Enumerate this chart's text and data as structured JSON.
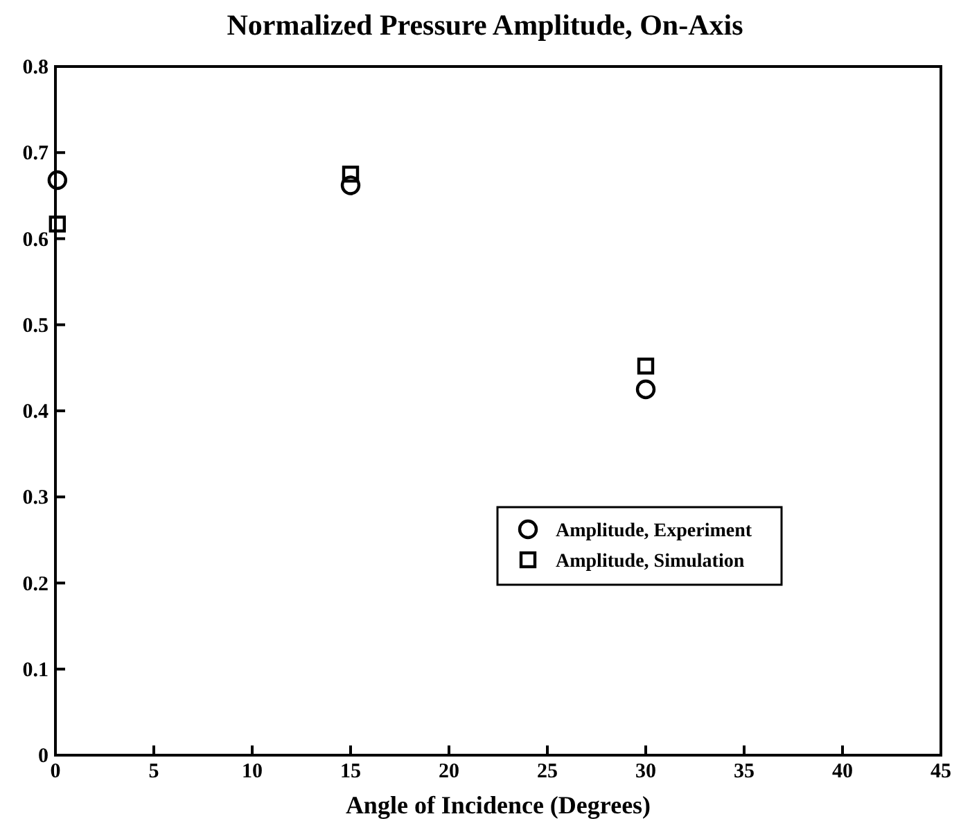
{
  "chart_data": {
    "type": "scatter",
    "title": "Normalized Pressure Amplitude, On-Axis",
    "xlabel": "Angle of Incidence (Degrees)",
    "xlim": [
      0,
      45
    ],
    "xticks": [
      0,
      5,
      10,
      15,
      20,
      25,
      30,
      35,
      40,
      45
    ],
    "ylim": [
      0,
      0.8
    ],
    "yticks": [
      0,
      0.1,
      0.2,
      0.3,
      0.4,
      0.5,
      0.6,
      0.7,
      0.8
    ],
    "grid": false,
    "legend": "bottom right",
    "series": [
      {
        "name": "Amplitude, Experiment",
        "color": "#000000",
        "marker": "circle",
        "x": [
          0.1,
          15,
          30
        ],
        "values": [
          0.668,
          0.662,
          0.425
        ]
      },
      {
        "name": "Amplitude, Simulation",
        "color": "#000000",
        "marker": "square",
        "x": [
          0.1,
          15,
          30
        ],
        "values": [
          0.617,
          0.675,
          0.452
        ]
      }
    ]
  }
}
